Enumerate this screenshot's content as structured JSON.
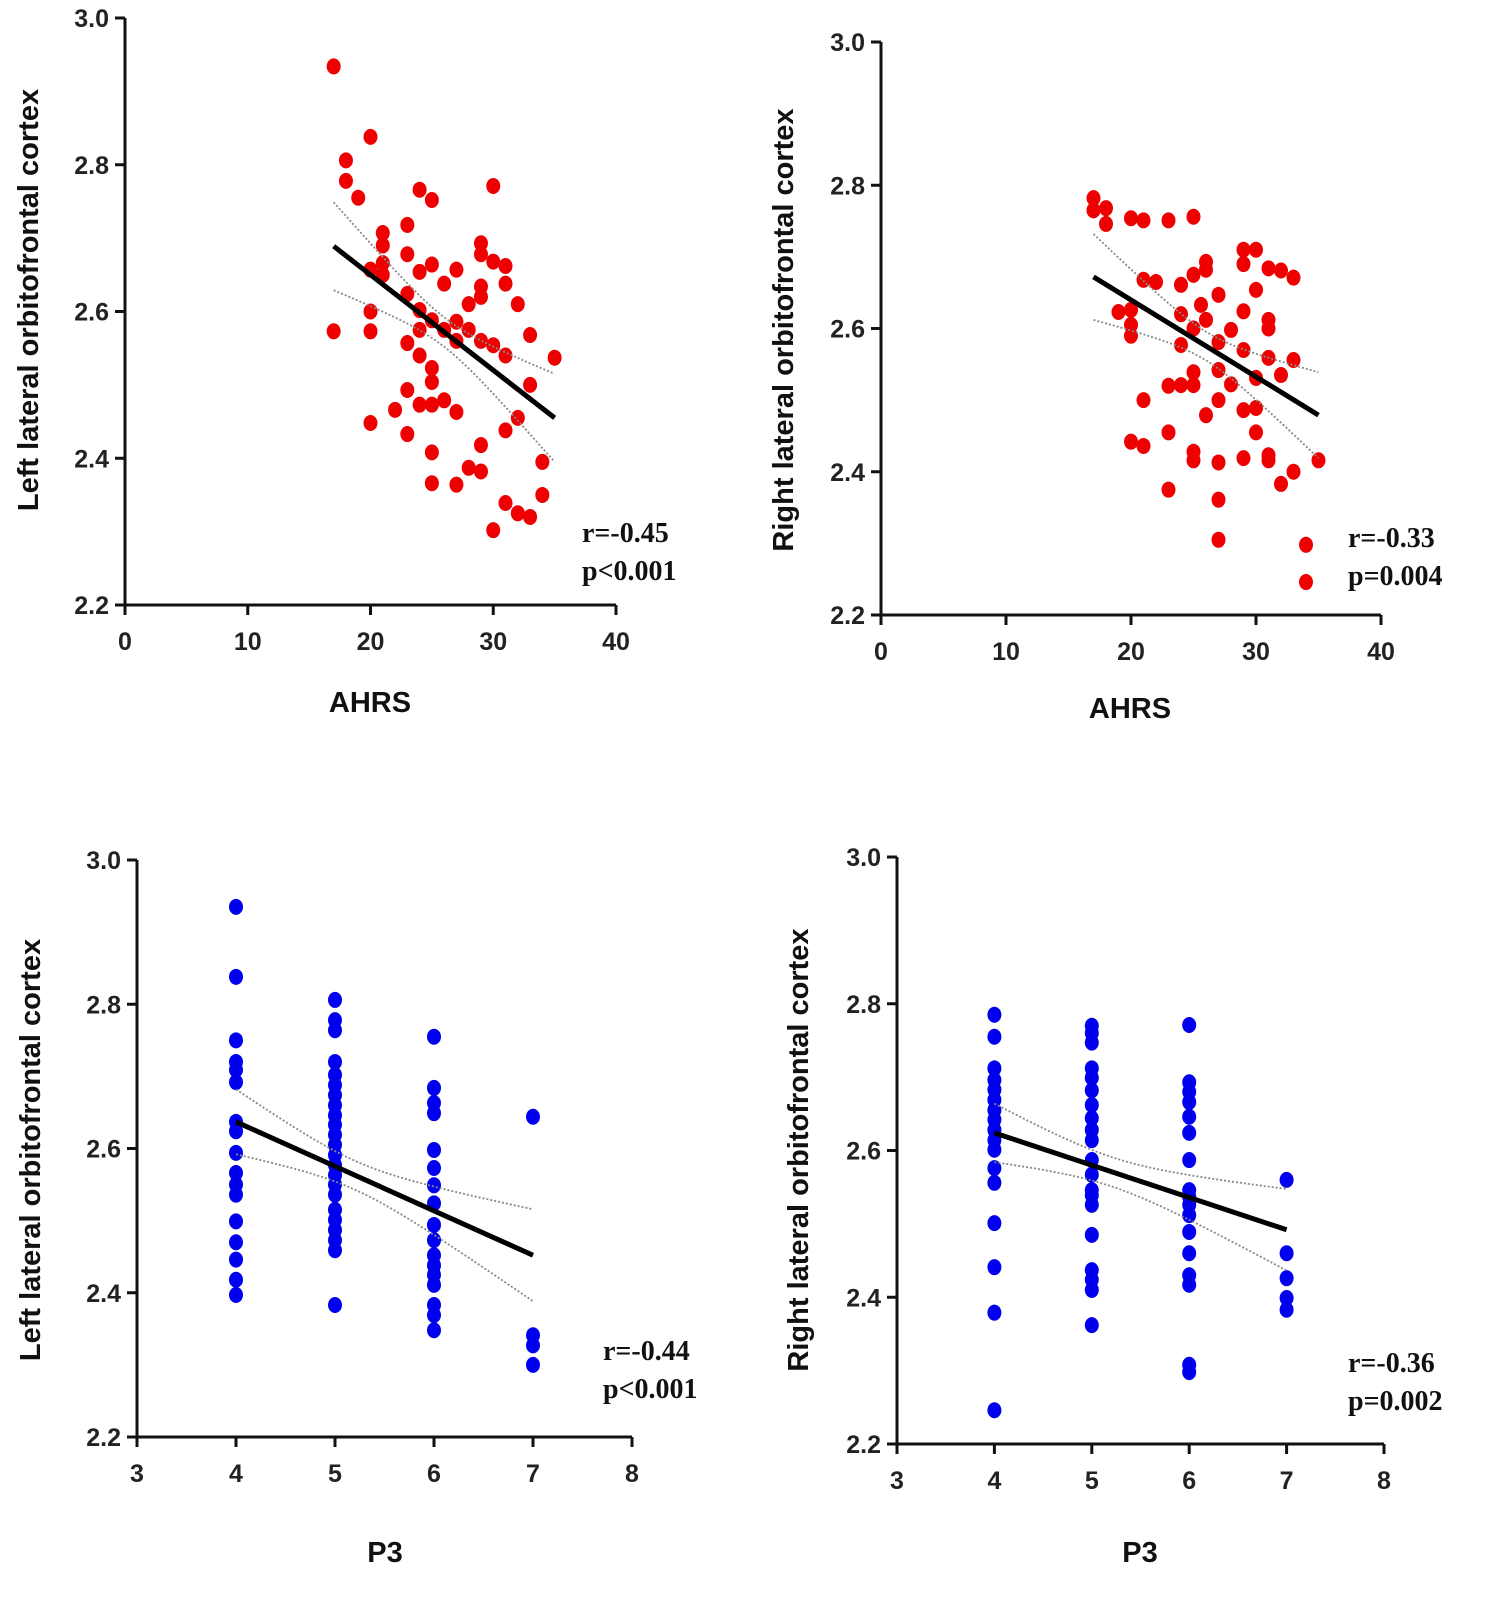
{
  "chart_data": [
    {
      "type": "scatter",
      "panel": "top-left",
      "xlabel": "AHRS",
      "ylabel": "Left lateral orbitofrontal cortex",
      "xlim": [
        0,
        40
      ],
      "ylim": [
        2.2,
        3.0
      ],
      "xticks": [
        "0",
        "10",
        "20",
        "30",
        "40"
      ],
      "yticks": [
        "2.2",
        "2.4",
        "2.6",
        "2.8",
        "3.0"
      ],
      "marker_color": "#ee0000",
      "annotation": {
        "r": "r=-0.45",
        "p": "p<0.001"
      },
      "fit": {
        "x": [
          17,
          35
        ],
        "y": [
          2.689,
          2.455
        ]
      },
      "ci": {
        "center_x": 26,
        "h0": 0.02,
        "k": 3.95e-05
      },
      "points": [
        [
          17,
          2.934
        ],
        [
          20,
          2.838
        ],
        [
          18,
          2.806
        ],
        [
          18,
          2.778
        ],
        [
          19,
          2.755
        ],
        [
          24,
          2.766
        ],
        [
          25,
          2.752
        ],
        [
          30,
          2.771
        ],
        [
          21,
          2.707
        ],
        [
          21,
          2.69
        ],
        [
          23,
          2.718
        ],
        [
          23,
          2.678
        ],
        [
          21,
          2.666
        ],
        [
          21,
          2.65
        ],
        [
          20,
          2.657
        ],
        [
          24,
          2.654
        ],
        [
          25,
          2.664
        ],
        [
          27,
          2.657
        ],
        [
          26,
          2.638
        ],
        [
          29,
          2.693
        ],
        [
          29,
          2.678
        ],
        [
          30,
          2.668
        ],
        [
          31,
          2.662
        ],
        [
          31,
          2.638
        ],
        [
          29,
          2.634
        ],
        [
          29,
          2.62
        ],
        [
          28,
          2.61
        ],
        [
          32,
          2.61
        ],
        [
          23,
          2.624
        ],
        [
          20,
          2.6
        ],
        [
          20,
          2.573
        ],
        [
          17,
          2.573
        ],
        [
          24,
          2.602
        ],
        [
          25,
          2.588
        ],
        [
          24,
          2.575
        ],
        [
          26,
          2.575
        ],
        [
          27,
          2.586
        ],
        [
          28,
          2.575
        ],
        [
          27,
          2.56
        ],
        [
          23,
          2.557
        ],
        [
          24,
          2.54
        ],
        [
          25,
          2.523
        ],
        [
          25,
          2.504
        ],
        [
          29,
          2.56
        ],
        [
          30,
          2.554
        ],
        [
          31,
          2.54
        ],
        [
          33,
          2.568
        ],
        [
          35,
          2.537
        ],
        [
          33,
          2.5
        ],
        [
          23,
          2.493
        ],
        [
          24,
          2.473
        ],
        [
          22,
          2.466
        ],
        [
          25,
          2.473
        ],
        [
          26,
          2.479
        ],
        [
          27,
          2.463
        ],
        [
          20,
          2.448
        ],
        [
          23,
          2.433
        ],
        [
          32,
          2.455
        ],
        [
          31,
          2.438
        ],
        [
          29,
          2.418
        ],
        [
          25,
          2.408
        ],
        [
          28,
          2.387
        ],
        [
          29,
          2.382
        ],
        [
          25,
          2.366
        ],
        [
          27,
          2.364
        ],
        [
          34,
          2.395
        ],
        [
          34,
          2.35
        ],
        [
          31,
          2.339
        ],
        [
          32,
          2.325
        ],
        [
          33,
          2.32
        ],
        [
          30,
          2.302
        ]
      ]
    },
    {
      "type": "scatter",
      "panel": "top-right",
      "xlabel": "AHRS",
      "ylabel": "Right lateral orbitofrontal cortex",
      "xlim": [
        0,
        40
      ],
      "ylim": [
        2.2,
        3.0
      ],
      "xticks": [
        "0",
        "10",
        "20",
        "30",
        "40"
      ],
      "yticks": [
        "2.2",
        "2.4",
        "2.6",
        "2.8",
        "3.0"
      ],
      "marker_color": "#ee0000",
      "annotation": {
        "r": "r=-0.33",
        "p": "p=0.004"
      },
      "fit": {
        "x": [
          17,
          35
        ],
        "y": [
          2.672,
          2.479
        ]
      },
      "ci": {
        "center_x": 26,
        "h0": 0.02,
        "k": 3.95e-05
      },
      "points": [
        [
          17,
          2.782
        ],
        [
          18,
          2.768
        ],
        [
          18,
          2.746
        ],
        [
          17,
          2.765
        ],
        [
          20,
          2.754
        ],
        [
          21,
          2.751
        ],
        [
          23,
          2.751
        ],
        [
          25,
          2.756
        ],
        [
          21,
          2.668
        ],
        [
          22,
          2.665
        ],
        [
          24,
          2.661
        ],
        [
          26,
          2.682
        ],
        [
          26,
          2.693
        ],
        [
          27,
          2.647
        ],
        [
          25,
          2.675
        ],
        [
          25.6,
          2.633
        ],
        [
          29,
          2.71
        ],
        [
          30,
          2.71
        ],
        [
          29,
          2.69
        ],
        [
          30,
          2.654
        ],
        [
          31,
          2.684
        ],
        [
          32,
          2.681
        ],
        [
          33,
          2.671
        ],
        [
          19,
          2.623
        ],
        [
          20,
          2.626
        ],
        [
          20,
          2.605
        ],
        [
          20,
          2.59
        ],
        [
          24,
          2.62
        ],
        [
          24,
          2.577
        ],
        [
          25,
          2.6
        ],
        [
          26,
          2.612
        ],
        [
          27,
          2.581
        ],
        [
          28,
          2.598
        ],
        [
          29,
          2.624
        ],
        [
          31,
          2.612
        ],
        [
          31,
          2.6
        ],
        [
          29,
          2.57
        ],
        [
          31,
          2.559
        ],
        [
          33,
          2.556
        ],
        [
          30,
          2.531
        ],
        [
          32,
          2.535
        ],
        [
          27,
          2.542
        ],
        [
          25,
          2.539
        ],
        [
          23,
          2.52
        ],
        [
          24,
          2.521
        ],
        [
          25,
          2.521
        ],
        [
          28,
          2.522
        ],
        [
          21,
          2.5
        ],
        [
          27,
          2.5
        ],
        [
          29,
          2.486
        ],
        [
          30,
          2.489
        ],
        [
          26,
          2.479
        ],
        [
          30,
          2.455
        ],
        [
          23,
          2.455
        ],
        [
          20,
          2.442
        ],
        [
          21,
          2.436
        ],
        [
          25,
          2.428
        ],
        [
          25,
          2.416
        ],
        [
          27,
          2.413
        ],
        [
          29,
          2.419
        ],
        [
          31,
          2.423
        ],
        [
          31,
          2.416
        ],
        [
          33,
          2.4
        ],
        [
          35,
          2.416
        ],
        [
          32,
          2.383
        ],
        [
          23,
          2.375
        ],
        [
          27,
          2.361
        ],
        [
          27,
          2.305
        ],
        [
          34,
          2.298
        ],
        [
          34,
          2.246
        ]
      ]
    },
    {
      "type": "scatter",
      "panel": "bottom-left",
      "xlabel": "P3",
      "ylabel": "Left lateral orbitofrontal cortex",
      "xlim": [
        3,
        8
      ],
      "ylim": [
        2.2,
        3.0
      ],
      "xticks": [
        "3",
        "4",
        "5",
        "6",
        "7",
        "8"
      ],
      "yticks": [
        "2.2",
        "2.4",
        "2.6",
        "2.8",
        "3.0"
      ],
      "marker_color": "#0000ee",
      "annotation": {
        "r": "r=-0.44",
        "p": "p<0.001"
      },
      "fit": {
        "x": [
          4,
          7
        ],
        "y": [
          2.637,
          2.452
        ]
      },
      "ci": {
        "center_x": 5.2,
        "h0": 0.02,
        "k": 0.00113
      },
      "points": [
        [
          4,
          2.935
        ],
        [
          4,
          2.838
        ],
        [
          4,
          2.75
        ],
        [
          4,
          2.72
        ],
        [
          4,
          2.709
        ],
        [
          4,
          2.692
        ],
        [
          4,
          2.637
        ],
        [
          4,
          2.624
        ],
        [
          4,
          2.594
        ],
        [
          4,
          2.566
        ],
        [
          4,
          2.55
        ],
        [
          4,
          2.536
        ],
        [
          4,
          2.499
        ],
        [
          4,
          2.47
        ],
        [
          4,
          2.446
        ],
        [
          4,
          2.418
        ],
        [
          4,
          2.397
        ],
        [
          5,
          2.806
        ],
        [
          5,
          2.778
        ],
        [
          5,
          2.764
        ],
        [
          5,
          2.72
        ],
        [
          5,
          2.702
        ],
        [
          5,
          2.688
        ],
        [
          5,
          2.674
        ],
        [
          5,
          2.66
        ],
        [
          5,
          2.646
        ],
        [
          5,
          2.633
        ],
        [
          5,
          2.619
        ],
        [
          5,
          2.605
        ],
        [
          5,
          2.591
        ],
        [
          5,
          2.577
        ],
        [
          5,
          2.563
        ],
        [
          5,
          2.55
        ],
        [
          5,
          2.536
        ],
        [
          5,
          2.515
        ],
        [
          5,
          2.501
        ],
        [
          5,
          2.487
        ],
        [
          5,
          2.473
        ],
        [
          5,
          2.459
        ],
        [
          5,
          2.383
        ],
        [
          6,
          2.755
        ],
        [
          6,
          2.684
        ],
        [
          6,
          2.663
        ],
        [
          6,
          2.649
        ],
        [
          6,
          2.598
        ],
        [
          6,
          2.573
        ],
        [
          6,
          2.549
        ],
        [
          6,
          2.524
        ],
        [
          6,
          2.494
        ],
        [
          6,
          2.473
        ],
        [
          6,
          2.452
        ],
        [
          6,
          2.438
        ],
        [
          6,
          2.425
        ],
        [
          6,
          2.411
        ],
        [
          6,
          2.383
        ],
        [
          6,
          2.369
        ],
        [
          6,
          2.348
        ],
        [
          7,
          2.644
        ],
        [
          7,
          2.341
        ],
        [
          7,
          2.327
        ],
        [
          7,
          2.3
        ]
      ]
    },
    {
      "type": "scatter",
      "panel": "bottom-right",
      "xlabel": "P3",
      "ylabel": "Right lateral orbitofrontal cortex",
      "xlim": [
        3,
        8
      ],
      "ylim": [
        2.2,
        3.0
      ],
      "xticks": [
        "3",
        "4",
        "5",
        "6",
        "7",
        "8"
      ],
      "yticks": [
        "2.2",
        "2.4",
        "2.6",
        "2.8",
        "3.0"
      ],
      "marker_color": "#0000ee",
      "annotation": {
        "r": "r=-0.36",
        "p": "p=0.002"
      },
      "fit": {
        "x": [
          4,
          7
        ],
        "y": [
          2.624,
          2.492
        ]
      },
      "ci": {
        "center_x": 5.2,
        "h0": 0.02,
        "k": 0.00083
      },
      "points": [
        [
          4,
          2.785
        ],
        [
          4,
          2.755
        ],
        [
          4,
          2.712
        ],
        [
          4,
          2.696
        ],
        [
          4,
          2.683
        ],
        [
          4,
          2.669
        ],
        [
          4,
          2.655
        ],
        [
          4,
          2.642
        ],
        [
          4,
          2.628
        ],
        [
          4,
          2.614
        ],
        [
          4,
          2.601
        ],
        [
          4,
          2.576
        ],
        [
          4,
          2.556
        ],
        [
          4,
          2.501
        ],
        [
          4,
          2.441
        ],
        [
          4,
          2.379
        ],
        [
          4,
          2.246
        ],
        [
          5,
          2.77
        ],
        [
          5,
          2.76
        ],
        [
          5,
          2.747
        ],
        [
          5,
          2.712
        ],
        [
          5,
          2.699
        ],
        [
          5,
          2.682
        ],
        [
          5,
          2.662
        ],
        [
          5,
          2.644
        ],
        [
          5,
          2.628
        ],
        [
          5,
          2.614
        ],
        [
          5,
          2.587
        ],
        [
          5,
          2.567
        ],
        [
          5,
          2.546
        ],
        [
          5,
          2.539
        ],
        [
          5,
          2.526
        ],
        [
          5,
          2.485
        ],
        [
          5,
          2.437
        ],
        [
          5,
          2.424
        ],
        [
          5,
          2.41
        ],
        [
          5,
          2.362
        ],
        [
          6,
          2.771
        ],
        [
          6,
          2.693
        ],
        [
          6,
          2.68
        ],
        [
          6,
          2.666
        ],
        [
          6,
          2.646
        ],
        [
          6,
          2.624
        ],
        [
          6,
          2.587
        ],
        [
          6,
          2.546
        ],
        [
          6,
          2.537
        ],
        [
          6,
          2.526
        ],
        [
          6,
          2.512
        ],
        [
          6,
          2.489
        ],
        [
          6,
          2.46
        ],
        [
          6,
          2.43
        ],
        [
          6,
          2.417
        ],
        [
          6,
          2.308
        ],
        [
          6,
          2.298
        ],
        [
          7,
          2.56
        ],
        [
          7,
          2.46
        ],
        [
          7,
          2.426
        ],
        [
          7,
          2.399
        ],
        [
          7,
          2.383
        ]
      ]
    }
  ]
}
